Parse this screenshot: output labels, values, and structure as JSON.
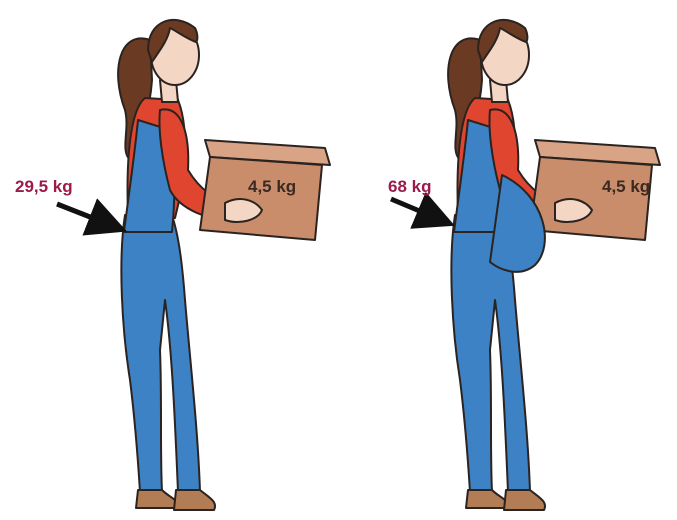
{
  "figures": [
    {
      "back_load": "29,5 kg",
      "box_load": "4,5 kg"
    },
    {
      "back_load": "68 kg",
      "box_load": "4,5 kg"
    }
  ]
}
